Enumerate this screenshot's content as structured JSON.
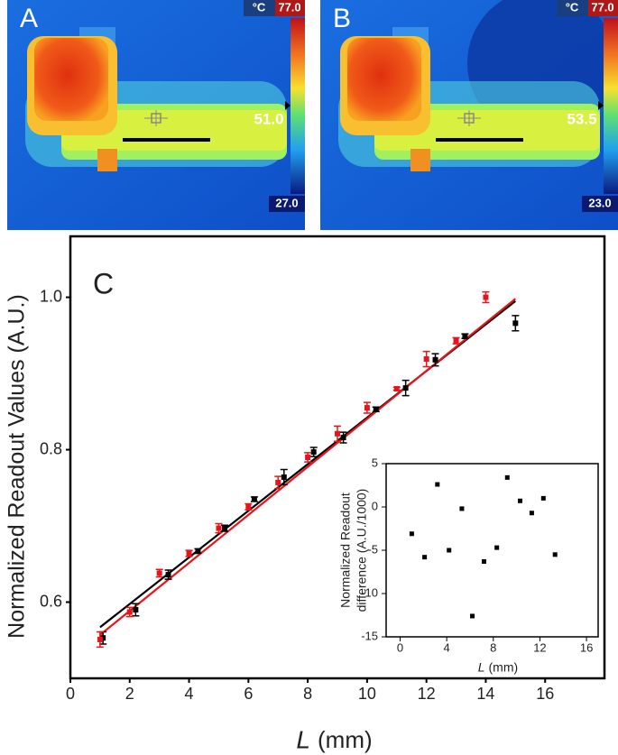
{
  "panels": [
    {
      "label": "A",
      "unit": "°C",
      "max": "77.0",
      "min": "27.0",
      "readout": "51.0"
    },
    {
      "label": "B",
      "unit": "°C",
      "max": "77.0",
      "min": "23.0",
      "readout": "53.5"
    }
  ],
  "chart_data": [
    {
      "type": "scatter",
      "label": "C",
      "ylabel": "Normalized Readout Values (A.U.)",
      "xlabel_symbol": "L",
      "xlabel_unit": "(mm)",
      "xlim": [
        0,
        18
      ],
      "ylim": [
        0.5,
        1.08
      ],
      "xticks": [
        0,
        2,
        4,
        6,
        8,
        10,
        12,
        14,
        16
      ],
      "yticks": [
        0.6,
        0.8,
        {
          "value": 1,
          "label": "1.0"
        }
      ],
      "series": [
        {
          "color": "#000000",
          "x": [
            1.1,
            2.2,
            3.3,
            4.3,
            5.2,
            6.2,
            7.2,
            8.2,
            9.2,
            10.3,
            11.3,
            12.3,
            13.3,
            15
          ],
          "values": [
            0.553,
            0.59,
            0.636,
            0.667,
            0.697,
            0.735,
            0.764,
            0.797,
            0.816,
            0.853,
            0.881,
            0.918,
            0.949,
            0.966
          ],
          "errors": [
            0.008,
            0.008,
            0.006,
            0.003,
            0.004,
            0.003,
            0.01,
            0.006,
            0.007,
            0.003,
            0.01,
            0.008,
            0.003,
            0.01
          ]
        },
        {
          "color": "#e8141b",
          "x": [
            1,
            2,
            3,
            4,
            5,
            6,
            7,
            8,
            9,
            10,
            11,
            12,
            13,
            14
          ],
          "values": [
            0.551,
            0.587,
            0.638,
            0.664,
            0.697,
            0.725,
            0.757,
            0.79,
            0.821,
            0.855,
            0.88,
            0.919,
            0.943,
            1.0
          ],
          "errors": [
            0.01,
            0.006,
            0.005,
            0.004,
            0.006,
            0.004,
            0.008,
            0.006,
            0.01,
            0.007,
            0.002,
            0.01,
            0.004,
            0.007
          ]
        }
      ],
      "fits": [
        {
          "color": "#000000",
          "x": [
            1,
            15
          ],
          "values": [
            0.567,
            0.995
          ]
        },
        {
          "color": "#e8141b",
          "x": [
            1,
            15
          ],
          "values": [
            0.557,
            0.998
          ]
        }
      ]
    },
    {
      "type": "scatter",
      "ylabel": [
        "Normalized Readout",
        "difference (A.U./1000)"
      ],
      "xlabel_symbol": "L",
      "xlabel_unit": "(mm)",
      "xlim": [
        -1.2,
        17
      ],
      "ylim": [
        -15,
        5
      ],
      "xticks": [
        0,
        4,
        8,
        12,
        16
      ],
      "yticks": [
        5,
        0,
        -5,
        -10,
        -15
      ],
      "series": [
        {
          "color": "#000000",
          "x": [
            1,
            2.1,
            3.2,
            4.2,
            5.3,
            6.2,
            7.2,
            8.3,
            9.2,
            10.3,
            11.3,
            12.3,
            13.3
          ],
          "values": [
            -3.1,
            -5.8,
            2.6,
            -5,
            -0.2,
            -12.6,
            -6.3,
            -4.7,
            3.4,
            0.7,
            -0.7,
            1,
            -5.5
          ]
        }
      ]
    }
  ]
}
